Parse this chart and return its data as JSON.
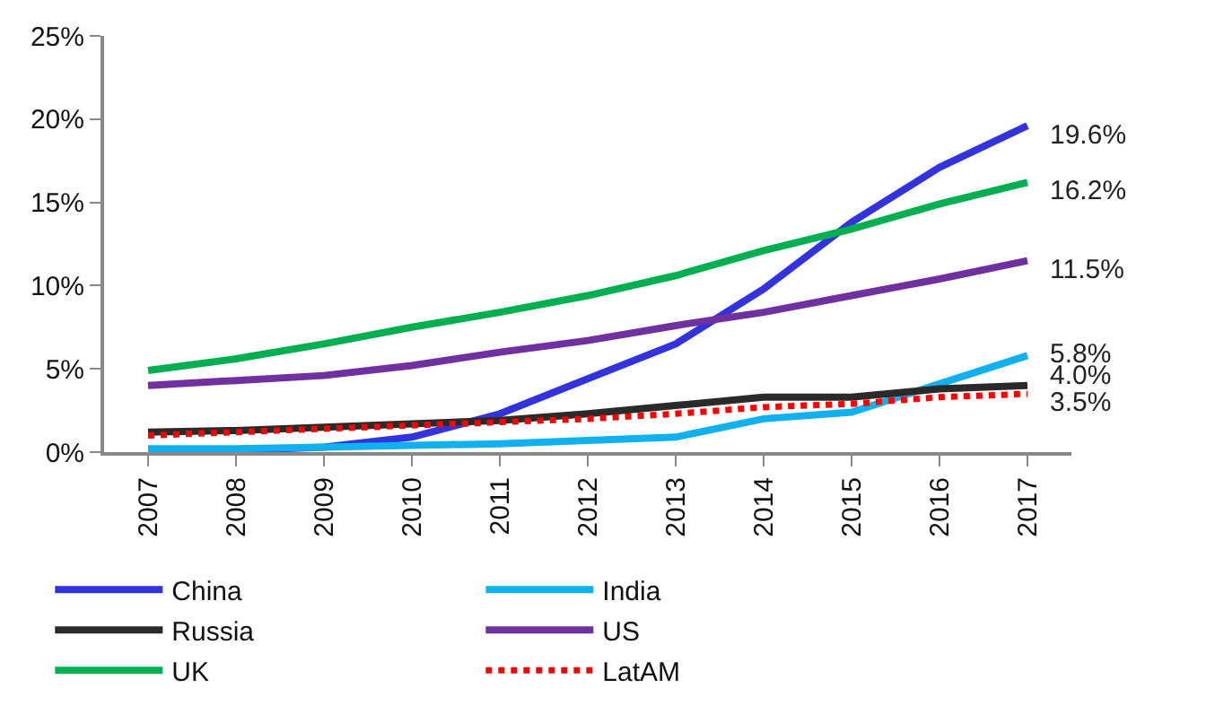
{
  "chart_data": {
    "type": "line",
    "categories": [
      "2007",
      "2008",
      "2009",
      "2010",
      "2011",
      "2012",
      "2013",
      "2014",
      "2015",
      "2016",
      "2017"
    ],
    "series": [
      {
        "name": "China",
        "color": "#3333dd",
        "values": [
          0.1,
          0.1,
          0.3,
          0.9,
          2.3,
          4.4,
          6.5,
          9.8,
          13.8,
          17.1,
          19.6
        ]
      },
      {
        "name": "India",
        "color": "#11b0ee",
        "values": [
          0.2,
          0.2,
          0.3,
          0.4,
          0.5,
          0.7,
          0.9,
          2.0,
          2.4,
          4.1,
          5.8
        ]
      },
      {
        "name": "Russia",
        "color": "#2a2a2a",
        "values": [
          1.2,
          1.3,
          1.5,
          1.7,
          1.9,
          2.3,
          2.8,
          3.3,
          3.3,
          3.8,
          4.0
        ]
      },
      {
        "name": "US",
        "color": "#7030a0",
        "values": [
          4.0,
          4.3,
          4.6,
          5.2,
          6.0,
          6.7,
          7.6,
          8.4,
          9.4,
          10.4,
          11.5
        ]
      },
      {
        "name": "UK",
        "color": "#00b050",
        "values": [
          4.9,
          5.6,
          6.5,
          7.5,
          8.4,
          9.4,
          10.6,
          12.1,
          13.4,
          14.9,
          16.2
        ]
      },
      {
        "name": "LatAM",
        "color": "#ff0000",
        "line_style": "dotted",
        "values": [
          1.0,
          1.2,
          1.4,
          1.6,
          1.8,
          2.0,
          2.3,
          2.7,
          2.9,
          3.3,
          3.5
        ]
      }
    ],
    "ylim": [
      0,
      25
    ],
    "yticks": [
      {
        "value": 0,
        "label": "0%"
      },
      {
        "value": 5,
        "label": "5%"
      },
      {
        "value": 10,
        "label": "10%"
      },
      {
        "value": 15,
        "label": "15%"
      },
      {
        "value": 20,
        "label": "20%"
      },
      {
        "value": 25,
        "label": "25%"
      }
    ],
    "annotations": [
      {
        "text": "19.6%",
        "x": "2017",
        "y": 19.6
      },
      {
        "text": "16.2%",
        "x": "2017",
        "y": 16.2
      },
      {
        "text": "11.5%",
        "x": "2017",
        "y": 11.5
      },
      {
        "text": "5.8%",
        "x": "2017",
        "y": 5.8
      },
      {
        "text": "4.0%",
        "x": "2017",
        "y": 4.0
      },
      {
        "text": "3.5%",
        "x": "2017",
        "y": 3.5
      }
    ],
    "legend": "bottom",
    "marker": "none",
    "line_style": "solid"
  }
}
